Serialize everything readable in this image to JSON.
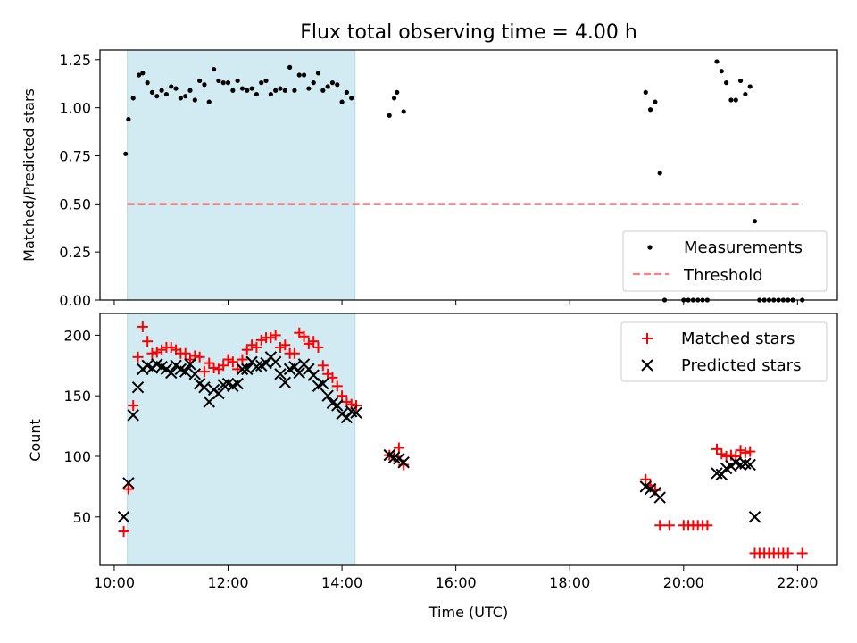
{
  "chart_data": [
    {
      "type": "scatter",
      "title": "Flux total observing time = 4.00 h",
      "xlabel": "",
      "ylabel": "Matched/Predicted stars",
      "xlim_hours": [
        9.75,
        22.7
      ],
      "ylim": [
        0,
        1.3
      ],
      "yticks": [
        0.0,
        0.25,
        0.5,
        0.75,
        1.0,
        1.25
      ],
      "ytick_labels": [
        "0.00",
        "0.25",
        "0.50",
        "0.75",
        "1.00",
        "1.25"
      ],
      "xticks_hours": [
        10,
        12,
        14,
        16,
        18,
        20,
        22
      ],
      "shaded_span_hours": [
        10.23,
        14.23
      ],
      "shade_color": "#add8e6",
      "threshold": {
        "name": "Threshold",
        "y": 0.5,
        "x_range_hours": [
          10.23,
          22.1
        ],
        "color": "#ff7f7f"
      },
      "legend": {
        "placement": "lower-right",
        "entries": [
          "Measurements",
          "Threshold"
        ]
      },
      "series": [
        {
          "name": "Measurements",
          "marker": "dot",
          "color": "#000000",
          "points": [
            [
              "10:12",
              0.76
            ],
            [
              "10:15",
              0.94
            ],
            [
              "10:20",
              1.05
            ],
            [
              "10:26",
              1.17
            ],
            [
              "10:30",
              1.18
            ],
            [
              "10:35",
              1.13
            ],
            [
              "10:40",
              1.08
            ],
            [
              "10:45",
              1.06
            ],
            [
              "10:50",
              1.09
            ],
            [
              "10:55",
              1.07
            ],
            [
              "11:00",
              1.11
            ],
            [
              "11:05",
              1.1
            ],
            [
              "11:10",
              1.05
            ],
            [
              "11:15",
              1.06
            ],
            [
              "11:20",
              1.09
            ],
            [
              "11:25",
              1.04
            ],
            [
              "11:30",
              1.14
            ],
            [
              "11:35",
              1.12
            ],
            [
              "11:40",
              1.03
            ],
            [
              "11:45",
              1.2
            ],
            [
              "11:50",
              1.14
            ],
            [
              "11:55",
              1.13
            ],
            [
              "12:00",
              1.13
            ],
            [
              "12:05",
              1.09
            ],
            [
              "12:10",
              1.14
            ],
            [
              "12:15",
              1.1
            ],
            [
              "12:20",
              1.09
            ],
            [
              "12:25",
              1.1
            ],
            [
              "12:30",
              1.07
            ],
            [
              "12:35",
              1.13
            ],
            [
              "12:40",
              1.14
            ],
            [
              "12:45",
              1.07
            ],
            [
              "12:50",
              1.09
            ],
            [
              "12:55",
              1.1
            ],
            [
              "13:00",
              1.09
            ],
            [
              "13:05",
              1.21
            ],
            [
              "13:10",
              1.09
            ],
            [
              "13:15",
              1.17
            ],
            [
              "13:20",
              1.17
            ],
            [
              "13:25",
              1.1
            ],
            [
              "13:30",
              1.13
            ],
            [
              "13:35",
              1.18
            ],
            [
              "13:40",
              1.09
            ],
            [
              "13:45",
              1.11
            ],
            [
              "13:50",
              1.13
            ],
            [
              "13:55",
              1.12
            ],
            [
              "14:00",
              1.03
            ],
            [
              "14:05",
              1.08
            ],
            [
              "14:10",
              1.05
            ],
            [
              "14:50",
              0.96
            ],
            [
              "14:55",
              1.05
            ],
            [
              "14:58",
              1.08
            ],
            [
              "15:05",
              0.98
            ],
            [
              "19:20",
              1.08
            ],
            [
              "19:25",
              0.99
            ],
            [
              "19:30",
              1.03
            ],
            [
              "19:35",
              0.66
            ],
            [
              "19:40",
              0.0
            ],
            [
              "20:00",
              0.0
            ],
            [
              "20:05",
              0.0
            ],
            [
              "20:10",
              0.0
            ],
            [
              "20:15",
              0.0
            ],
            [
              "20:20",
              0.0
            ],
            [
              "20:25",
              0.0
            ],
            [
              "20:35",
              1.24
            ],
            [
              "20:40",
              1.19
            ],
            [
              "20:45",
              1.13
            ],
            [
              "20:50",
              1.04
            ],
            [
              "20:55",
              1.04
            ],
            [
              "21:00",
              1.14
            ],
            [
              "21:05",
              1.07
            ],
            [
              "21:10",
              1.11
            ],
            [
              "21:15",
              0.41
            ],
            [
              "21:20",
              0.0
            ],
            [
              "21:25",
              0.0
            ],
            [
              "21:30",
              0.0
            ],
            [
              "21:35",
              0.0
            ],
            [
              "21:40",
              0.0
            ],
            [
              "21:45",
              0.0
            ],
            [
              "21:50",
              0.0
            ],
            [
              "21:55",
              0.0
            ],
            [
              "22:05",
              0.0
            ]
          ]
        }
      ]
    },
    {
      "type": "scatter",
      "title": "",
      "xlabel": "Time (UTC)",
      "ylabel": "Count",
      "xlim_hours": [
        9.75,
        22.7
      ],
      "ylim": [
        10,
        218
      ],
      "yticks": [
        50,
        100,
        150,
        200
      ],
      "ytick_labels": [
        "50",
        "100",
        "150",
        "200"
      ],
      "xticks_hours": [
        10,
        12,
        14,
        16,
        18,
        20,
        22
      ],
      "xtick_labels": [
        "10:00",
        "12:00",
        "14:00",
        "16:00",
        "18:00",
        "20:00",
        "22:00"
      ],
      "shaded_span_hours": [
        10.23,
        14.23
      ],
      "shade_color": "#add8e6",
      "legend": {
        "placement": "upper-right",
        "entries": [
          "Matched stars",
          "Predicted stars"
        ]
      },
      "series": [
        {
          "name": "Matched stars",
          "marker": "plus",
          "color": "#ff0000",
          "points": [
            [
              "10:10",
              38
            ],
            [
              "10:15",
              73
            ],
            [
              "10:20",
              142
            ],
            [
              "10:25",
              182
            ],
            [
              "10:30",
              207
            ],
            [
              "10:35",
              195
            ],
            [
              "10:40",
              185
            ],
            [
              "10:45",
              186
            ],
            [
              "10:50",
              188
            ],
            [
              "10:55",
              190
            ],
            [
              "11:00",
              190
            ],
            [
              "11:05",
              188
            ],
            [
              "11:10",
              185
            ],
            [
              "11:15",
              185
            ],
            [
              "11:20",
              180
            ],
            [
              "11:25",
              183
            ],
            [
              "11:30",
              182
            ],
            [
              "11:35",
              170
            ],
            [
              "11:40",
              177
            ],
            [
              "11:45",
              173
            ],
            [
              "11:50",
              172
            ],
            [
              "11:55",
              175
            ],
            [
              "12:00",
              180
            ],
            [
              "12:05",
              178
            ],
            [
              "12:10",
              172
            ],
            [
              "12:15",
              180
            ],
            [
              "12:20",
              188
            ],
            [
              "12:25",
              192
            ],
            [
              "12:30",
              190
            ],
            [
              "12:35",
              196
            ],
            [
              "12:40",
              198
            ],
            [
              "12:45",
              198
            ],
            [
              "12:50",
              200
            ],
            [
              "12:55",
              190
            ],
            [
              "13:00",
              192
            ],
            [
              "13:05",
              185
            ],
            [
              "13:10",
              185
            ],
            [
              "13:15",
              202
            ],
            [
              "13:20",
              199
            ],
            [
              "13:25",
              193
            ],
            [
              "13:30",
              195
            ],
            [
              "13:35",
              190
            ],
            [
              "13:40",
              175
            ],
            [
              "13:45",
              168
            ],
            [
              "13:50",
              165
            ],
            [
              "13:55",
              158
            ],
            [
              "14:00",
              150
            ],
            [
              "14:05",
              145
            ],
            [
              "14:10",
              143
            ],
            [
              "14:15",
              142
            ],
            [
              "14:50",
              101
            ],
            [
              "14:55",
              100
            ],
            [
              "15:00",
              107
            ],
            [
              "15:05",
              93
            ],
            [
              "19:20",
              81
            ],
            [
              "19:25",
              76
            ],
            [
              "19:30",
              72
            ],
            [
              "19:35",
              43
            ],
            [
              "19:45",
              43
            ],
            [
              "20:00",
              43
            ],
            [
              "20:05",
              43
            ],
            [
              "20:10",
              43
            ],
            [
              "20:15",
              43
            ],
            [
              "20:20",
              43
            ],
            [
              "20:25",
              43
            ],
            [
              "20:35",
              106
            ],
            [
              "20:40",
              102
            ],
            [
              "20:45",
              100
            ],
            [
              "20:50",
              101
            ],
            [
              "20:55",
              100
            ],
            [
              "21:00",
              105
            ],
            [
              "21:05",
              103
            ],
            [
              "21:10",
              104
            ],
            [
              "21:15",
              20
            ],
            [
              "21:20",
              20
            ],
            [
              "21:25",
              20
            ],
            [
              "21:30",
              20
            ],
            [
              "21:35",
              20
            ],
            [
              "21:40",
              20
            ],
            [
              "21:45",
              20
            ],
            [
              "21:50",
              20
            ],
            [
              "22:05",
              20
            ]
          ]
        },
        {
          "name": "Predicted stars",
          "marker": "x",
          "color": "#000000",
          "points": [
            [
              "10:10",
              50
            ],
            [
              "10:15",
              78
            ],
            [
              "10:20",
              134
            ],
            [
              "10:25",
              157
            ],
            [
              "10:30",
              172
            ],
            [
              "10:35",
              175
            ],
            [
              "10:40",
              173
            ],
            [
              "10:45",
              176
            ],
            [
              "10:50",
              174
            ],
            [
              "10:55",
              172
            ],
            [
              "11:00",
              169
            ],
            [
              "11:05",
              175
            ],
            [
              "11:10",
              172
            ],
            [
              "11:15",
              170
            ],
            [
              "11:20",
              176
            ],
            [
              "11:25",
              168
            ],
            [
              "11:30",
              160
            ],
            [
              "11:35",
              157
            ],
            [
              "11:40",
              145
            ],
            [
              "11:45",
              155
            ],
            [
              "11:50",
              152
            ],
            [
              "11:55",
              159
            ],
            [
              "12:00",
              160
            ],
            [
              "12:05",
              158
            ],
            [
              "12:10",
              160
            ],
            [
              "12:15",
              172
            ],
            [
              "12:20",
              172
            ],
            [
              "12:25",
              178
            ],
            [
              "12:30",
              174
            ],
            [
              "12:35",
              175
            ],
            [
              "12:40",
              177
            ],
            [
              "12:45",
              182
            ],
            [
              "12:50",
              178
            ],
            [
              "12:55",
              168
            ],
            [
              "13:00",
              161
            ],
            [
              "13:05",
              172
            ],
            [
              "13:10",
              174
            ],
            [
              "13:15",
              169
            ],
            [
              "13:20",
              176
            ],
            [
              "13:25",
              172
            ],
            [
              "13:30",
              167
            ],
            [
              "13:35",
              158
            ],
            [
              "13:40",
              160
            ],
            [
              "13:45",
              150
            ],
            [
              "13:50",
              144
            ],
            [
              "13:55",
              142
            ],
            [
              "14:00",
              135
            ],
            [
              "14:05",
              132
            ],
            [
              "14:10",
              137
            ],
            [
              "14:15",
              136
            ],
            [
              "14:50",
              101
            ],
            [
              "14:55",
              99
            ],
            [
              "15:00",
              98
            ],
            [
              "15:05",
              95
            ],
            [
              "19:20",
              75
            ],
            [
              "19:25",
              73
            ],
            [
              "19:30",
              70
            ],
            [
              "19:35",
              66
            ],
            [
              "20:35",
              86
            ],
            [
              "20:40",
              85
            ],
            [
              "20:45",
              90
            ],
            [
              "20:50",
              92
            ],
            [
              "20:55",
              95
            ],
            [
              "21:00",
              93
            ],
            [
              "21:05",
              94
            ],
            [
              "21:10",
              93
            ],
            [
              "21:15",
              50
            ]
          ]
        }
      ]
    }
  ]
}
